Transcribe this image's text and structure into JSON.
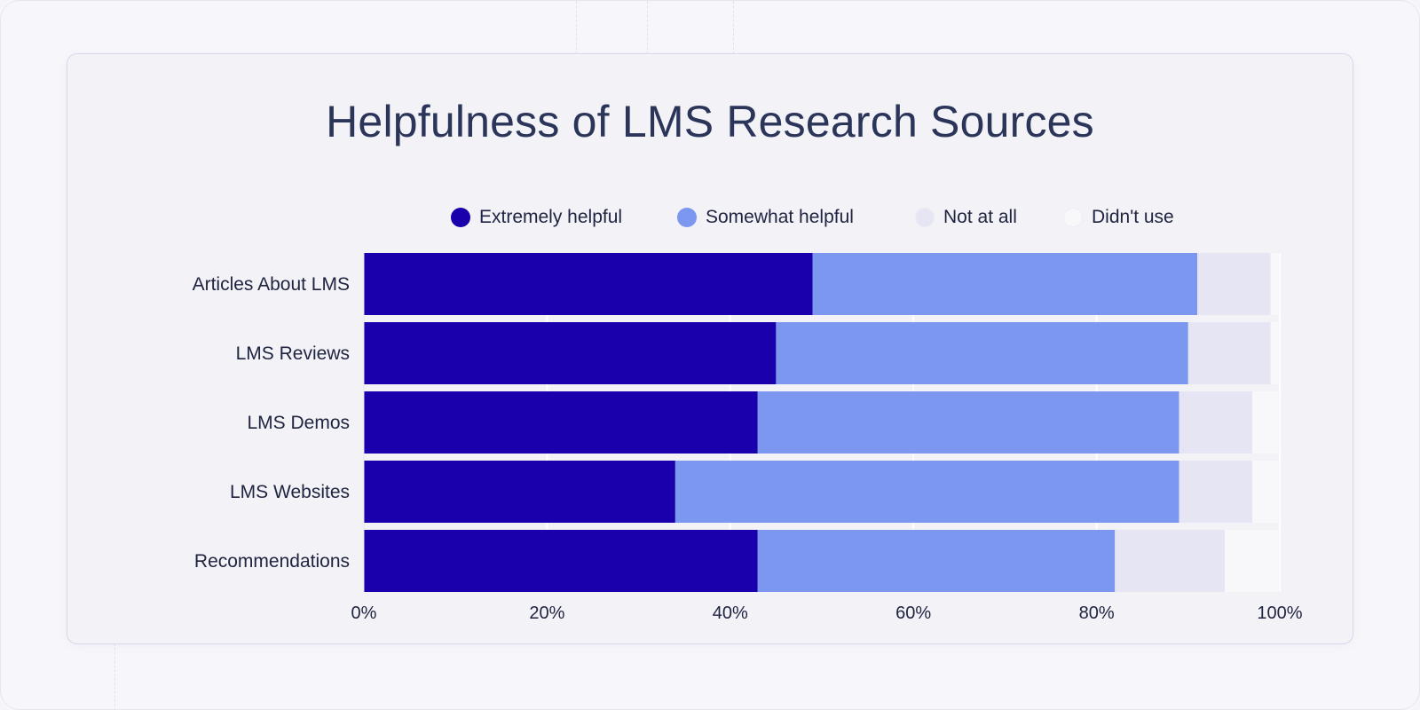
{
  "chart_data": {
    "type": "bar",
    "orientation": "horizontal",
    "stacked": true,
    "title": "Helpfulness of LMS Research Sources",
    "categories": [
      "Articles About LMS",
      "LMS Reviews",
      "LMS Demos",
      "LMS Websites",
      "Recommendations"
    ],
    "series": [
      {
        "name": "Extremely helpful",
        "color": "#1a00ad",
        "values": [
          49,
          45,
          43,
          34,
          43
        ]
      },
      {
        "name": "Somewhat helpful",
        "color": "#7b97f0",
        "values": [
          42,
          45,
          46,
          55,
          39
        ]
      },
      {
        "name": "Not at all",
        "color": "#e5e5f4",
        "values": [
          8,
          9,
          8,
          8,
          12
        ]
      },
      {
        "name": "Didn't use",
        "color": "#f8f8fb",
        "values": [
          1,
          1,
          3,
          3,
          6
        ]
      }
    ],
    "xlim": [
      0,
      100
    ],
    "xticks": [
      "0%",
      "20%",
      "40%",
      "60%",
      "80%",
      "100%"
    ],
    "legend_position": "top",
    "grid": true
  }
}
